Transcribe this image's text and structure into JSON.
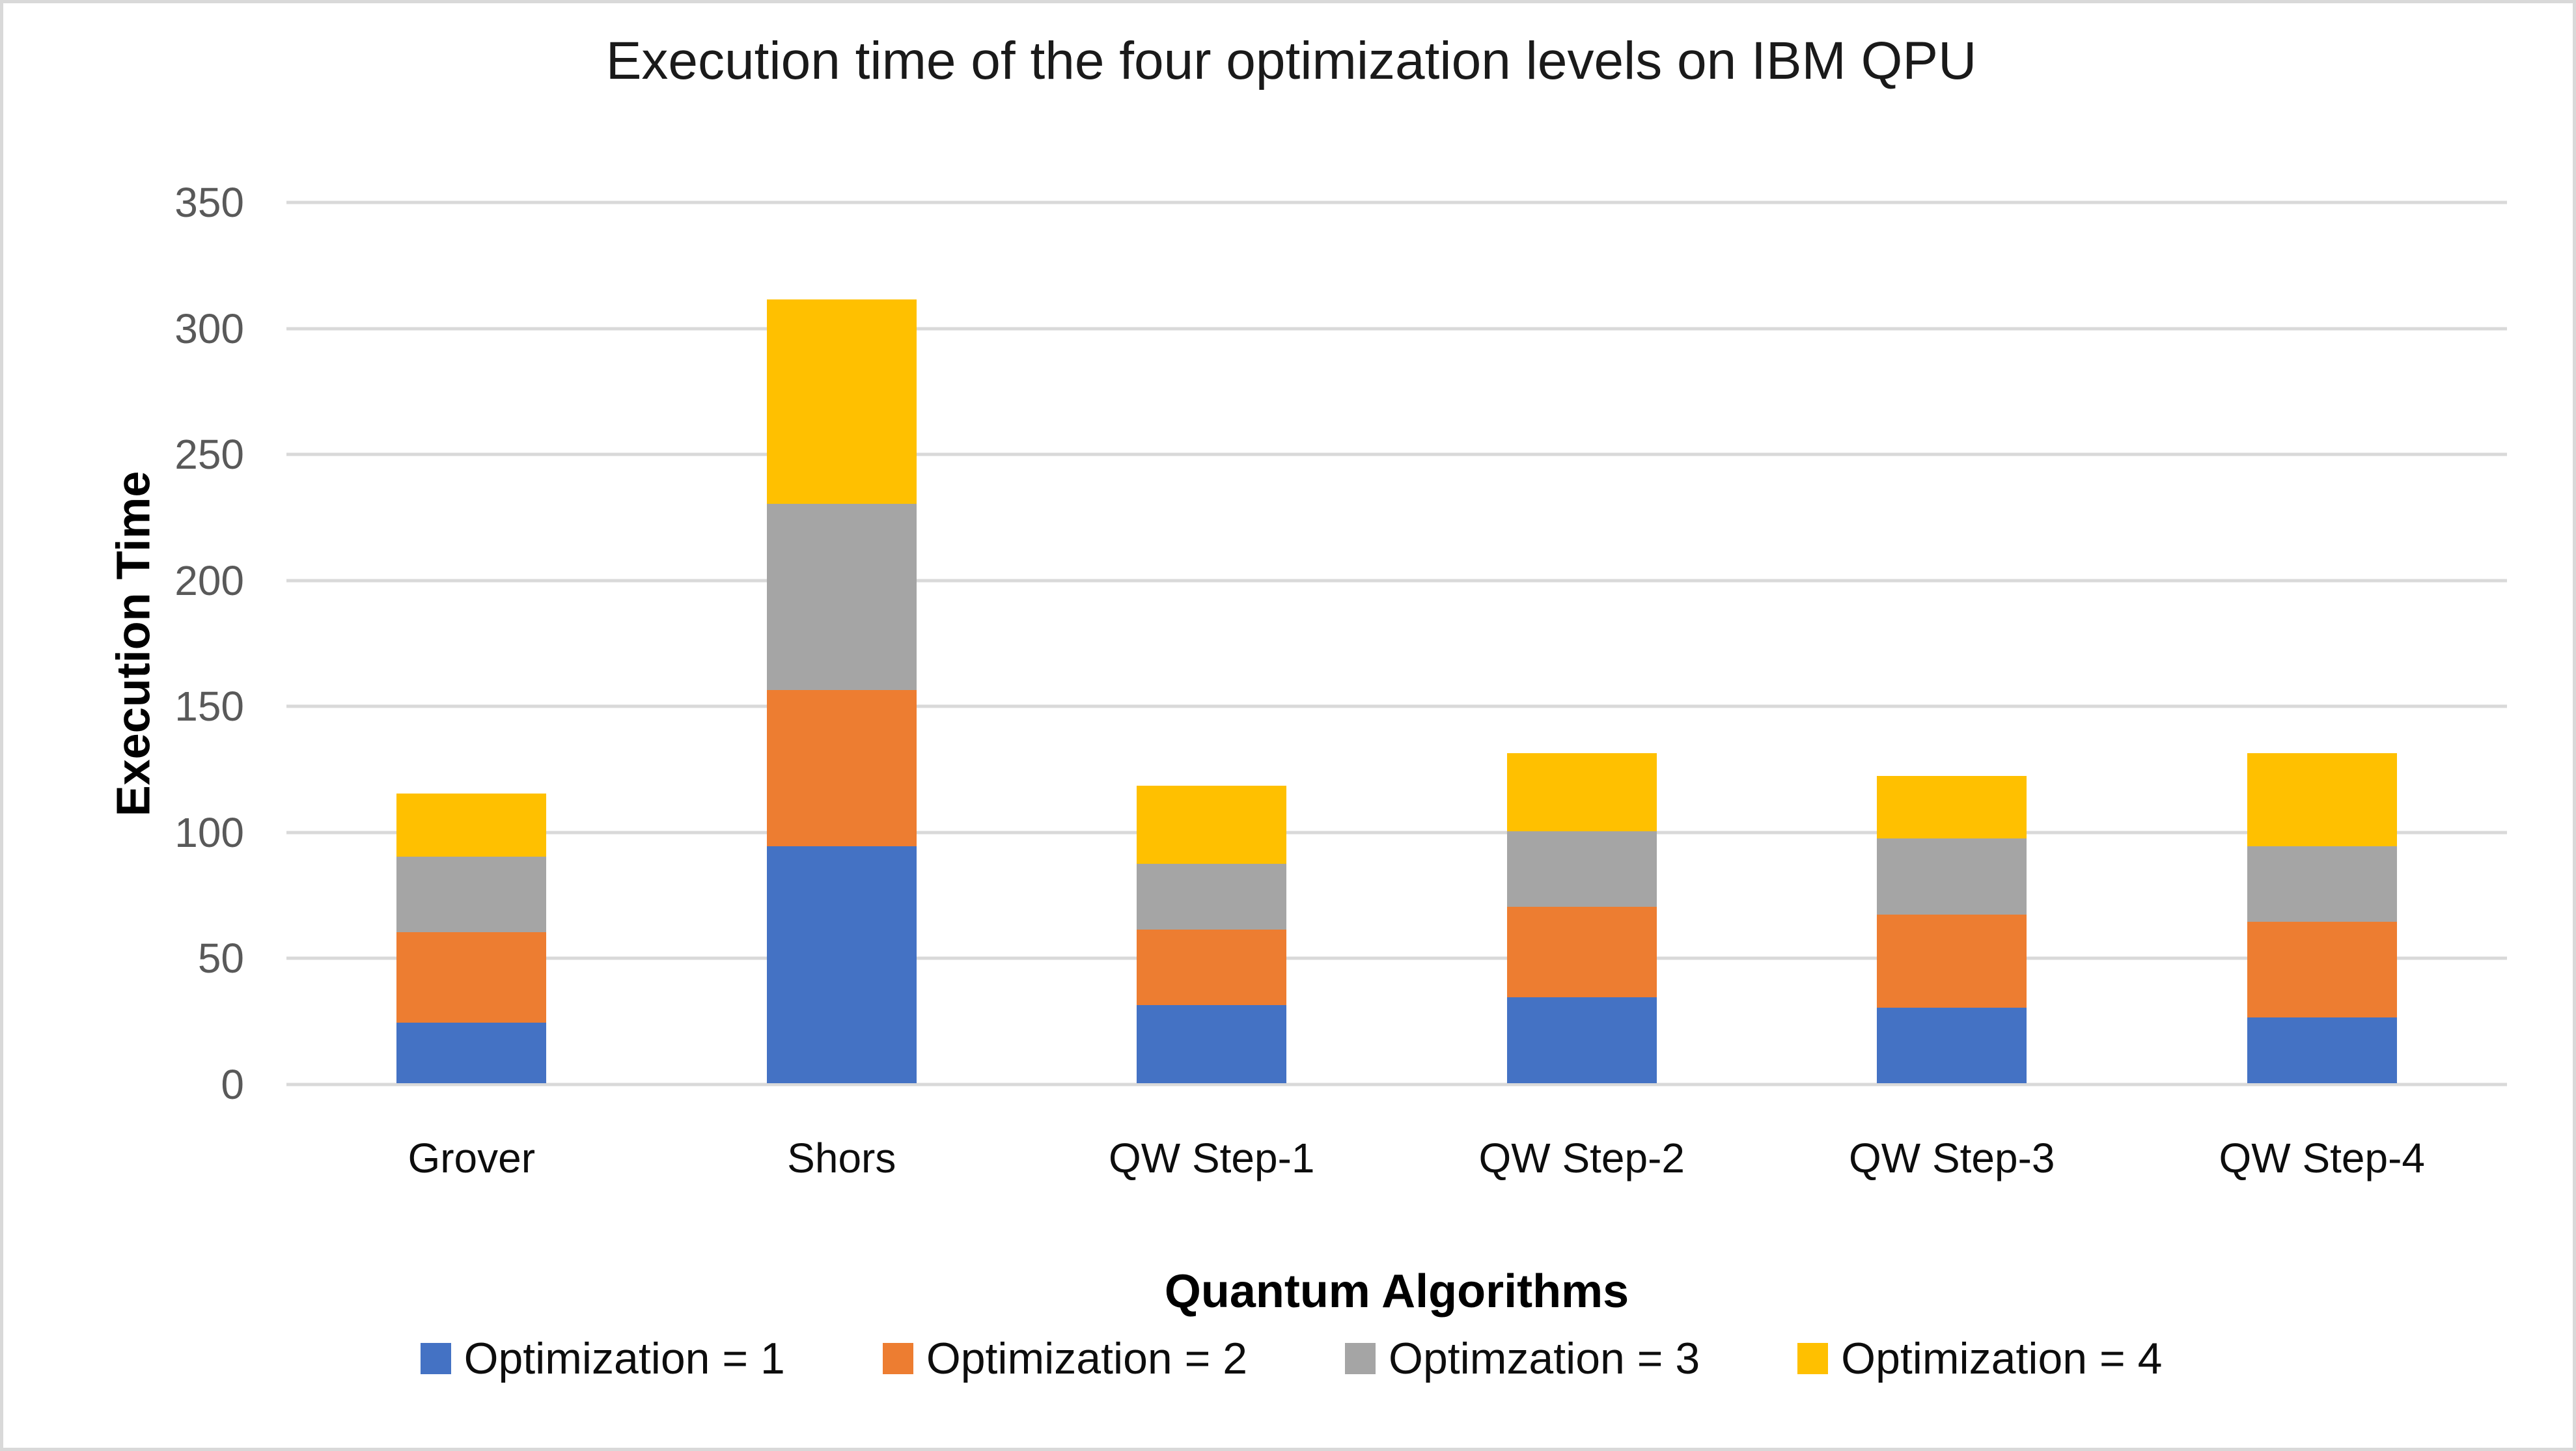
{
  "frame": {
    "background_color": "#FFFFFF",
    "border_color": "#D9D9D9"
  },
  "chart_data": {
    "type": "bar",
    "stacked": true,
    "title": "Execution time of the four optimization levels on IBM QPU",
    "xlabel": "Quantum Algorithms",
    "ylabel": "Execution Time",
    "categories": [
      "Grover",
      "Shors",
      "QW Step-1",
      "QW Step-2",
      "QW Step-3",
      "QW Step-4"
    ],
    "series": [
      {
        "name": "Optimization = 1",
        "color": "#4472C4",
        "values": [
          24,
          94,
          31,
          34,
          30,
          26
        ]
      },
      {
        "name": "Optimization = 2",
        "color": "#ED7D31",
        "values": [
          36,
          62,
          30,
          36,
          37,
          38
        ]
      },
      {
        "name": "Optimzation = 3",
        "color": "#A5A5A5",
        "values": [
          30,
          74,
          26,
          30,
          30,
          30
        ]
      },
      {
        "name": "Optimization = 4",
        "color": "#FFC000",
        "values": [
          25,
          81,
          31,
          31,
          25,
          37
        ]
      }
    ],
    "totals": [
      115,
      311,
      118,
      131,
      122,
      131
    ],
    "ylim": [
      0,
      350
    ],
    "yticks": [
      0,
      50,
      100,
      150,
      200,
      250,
      300,
      350
    ],
    "grid": "horizontal",
    "gridline_color": "#D9D9D9",
    "tick_label_color": "#595959",
    "category_label_color": "#0D0D0D",
    "legend_position": "bottom"
  }
}
